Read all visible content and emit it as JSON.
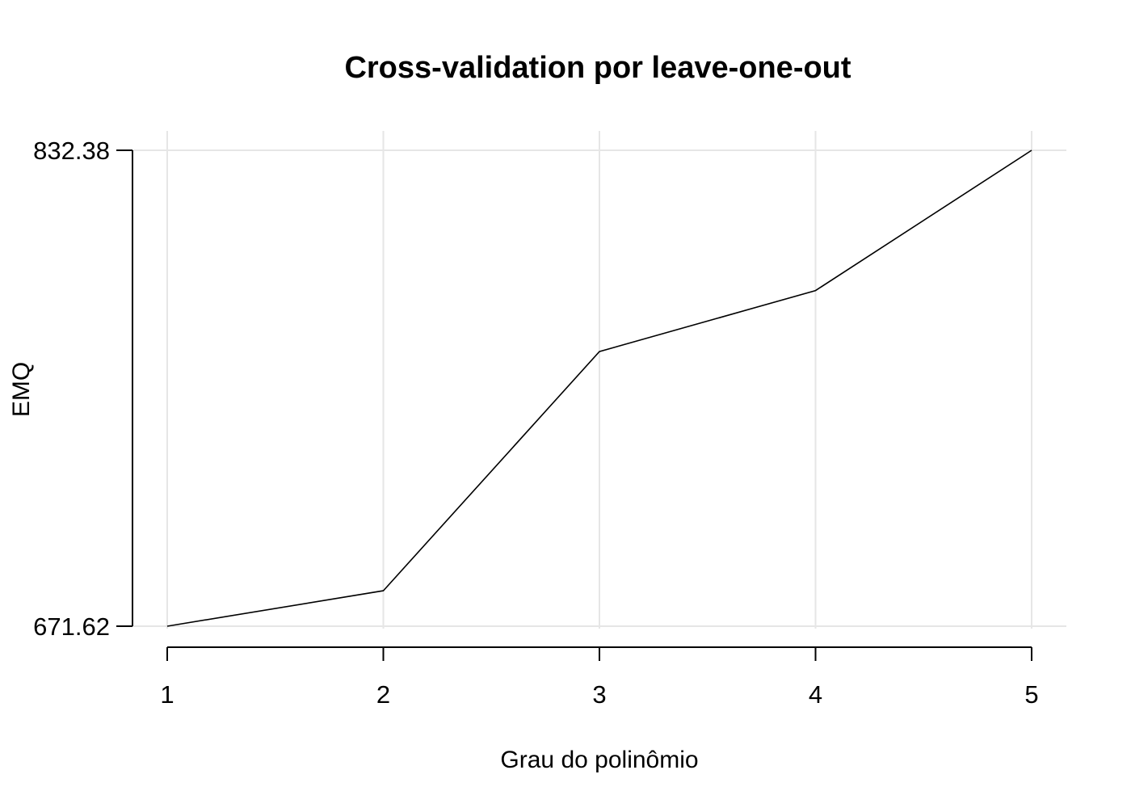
{
  "chart_data": {
    "type": "line",
    "title": "Cross-validation por leave-one-out",
    "xlabel": "Grau do polinômio",
    "ylabel": "EMQ",
    "x": [
      1,
      2,
      3,
      4,
      5
    ],
    "x_tick_labels": [
      "1",
      "2",
      "3",
      "4",
      "5"
    ],
    "y_tick_labels": [
      "832.38",
      "671.62"
    ],
    "y_ticks": [
      832.38,
      671.62
    ],
    "xlim": [
      1,
      5
    ],
    "ylim": [
      671.62,
      832.38
    ],
    "series": [
      {
        "values": [
          671.62,
          683.6,
          764.4,
          785.0,
          832.38
        ],
        "color": "#000000"
      }
    ],
    "grid": true,
    "legend": "none"
  }
}
